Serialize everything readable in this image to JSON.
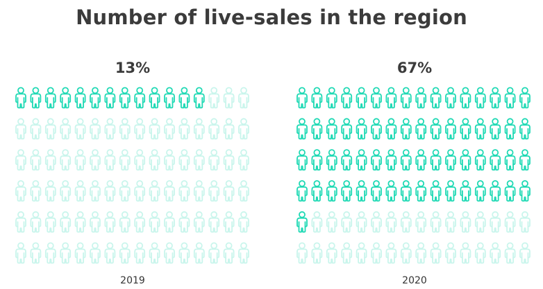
{
  "title": "Number of live-sales in the region",
  "colors": {
    "active": "#1ed9b4",
    "inactive": "#c9f5ec",
    "text": "#3b3b3b"
  },
  "chart_data": {
    "type": "pictogram",
    "title": "Number of live-sales in the region",
    "icon": "person-icon",
    "grid": {
      "columns": 16,
      "rows": 6,
      "total": 96
    },
    "panels": [
      {
        "category": "2019",
        "label": "13%",
        "value": 13,
        "filled_icons": 13
      },
      {
        "category": "2020",
        "label": "67%",
        "value": 67,
        "filled_icons": 65
      }
    ]
  }
}
